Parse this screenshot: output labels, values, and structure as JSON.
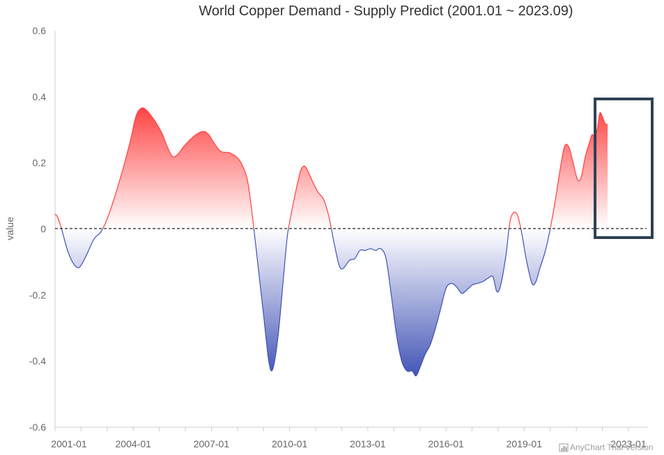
{
  "chart_data": {
    "type": "area",
    "title": "World Copper Demand - Supply Predict (2001.01 ~ 2023.09)",
    "xlabel": "",
    "ylabel": "value",
    "ylim": [
      -0.6,
      0.6
    ],
    "y_ticks": [
      "0.6",
      "0.4",
      "0.2",
      "0",
      "-0.2",
      "-0.4",
      "-0.6"
    ],
    "x_range": [
      2001.0,
      2023.75
    ],
    "x_ticks": [
      {
        "label": "2001-01",
        "x": 2001.0
      },
      {
        "label": "2004-01",
        "x": 2004.0
      },
      {
        "label": "2007-01",
        "x": 2007.0
      },
      {
        "label": "2010-01",
        "x": 2010.0
      },
      {
        "label": "2013-01",
        "x": 2013.0
      },
      {
        "label": "2016-01",
        "x": 2016.0
      },
      {
        "label": "2019-01",
        "x": 2019.0
      },
      {
        "label": "2023-01",
        "x": 2023.0
      }
    ],
    "baseline": 0,
    "positive_color": "#ff4040",
    "negative_color": "#3f51b5",
    "highlight_range": [
      2021.8,
      2023.75
    ],
    "credits": "AnyChart Trial Version",
    "series": [
      {
        "values": [
          [
            2001.0,
            0.045
          ],
          [
            2001.1,
            0.035
          ],
          [
            2001.25,
            0.0
          ],
          [
            2001.5,
            -0.07
          ],
          [
            2001.75,
            -0.11
          ],
          [
            2001.95,
            -0.115
          ],
          [
            2002.2,
            -0.08
          ],
          [
            2002.5,
            -0.03
          ],
          [
            2002.75,
            -0.01
          ],
          [
            2003.0,
            0.03
          ],
          [
            2003.3,
            0.1
          ],
          [
            2003.6,
            0.18
          ],
          [
            2003.9,
            0.27
          ],
          [
            2004.1,
            0.34
          ],
          [
            2004.3,
            0.365
          ],
          [
            2004.5,
            0.36
          ],
          [
            2004.8,
            0.33
          ],
          [
            2005.1,
            0.29
          ],
          [
            2005.3,
            0.25
          ],
          [
            2005.5,
            0.22
          ],
          [
            2005.7,
            0.225
          ],
          [
            2006.0,
            0.255
          ],
          [
            2006.4,
            0.285
          ],
          [
            2006.7,
            0.295
          ],
          [
            2006.9,
            0.285
          ],
          [
            2007.1,
            0.26
          ],
          [
            2007.35,
            0.235
          ],
          [
            2007.7,
            0.23
          ],
          [
            2008.0,
            0.215
          ],
          [
            2008.2,
            0.19
          ],
          [
            2008.4,
            0.14
          ],
          [
            2008.6,
            0.02
          ],
          [
            2008.8,
            -0.12
          ],
          [
            2009.0,
            -0.26
          ],
          [
            2009.2,
            -0.4
          ],
          [
            2009.35,
            -0.425
          ],
          [
            2009.55,
            -0.33
          ],
          [
            2009.75,
            -0.16
          ],
          [
            2009.9,
            -0.03
          ],
          [
            2010.0,
            0.02
          ],
          [
            2010.2,
            0.1
          ],
          [
            2010.4,
            0.17
          ],
          [
            2010.55,
            0.19
          ],
          [
            2010.7,
            0.175
          ],
          [
            2010.9,
            0.14
          ],
          [
            2011.1,
            0.11
          ],
          [
            2011.3,
            0.09
          ],
          [
            2011.5,
            0.04
          ],
          [
            2011.7,
            -0.04
          ],
          [
            2011.9,
            -0.11
          ],
          [
            2012.05,
            -0.12
          ],
          [
            2012.3,
            -0.095
          ],
          [
            2012.5,
            -0.09
          ],
          [
            2012.7,
            -0.065
          ],
          [
            2012.9,
            -0.065
          ],
          [
            2013.1,
            -0.06
          ],
          [
            2013.3,
            -0.065
          ],
          [
            2013.5,
            -0.06
          ],
          [
            2013.7,
            -0.09
          ],
          [
            2013.9,
            -0.2
          ],
          [
            2014.1,
            -0.32
          ],
          [
            2014.3,
            -0.4
          ],
          [
            2014.5,
            -0.43
          ],
          [
            2014.7,
            -0.43
          ],
          [
            2014.85,
            -0.445
          ],
          [
            2015.0,
            -0.42
          ],
          [
            2015.2,
            -0.38
          ],
          [
            2015.4,
            -0.35
          ],
          [
            2015.6,
            -0.3
          ],
          [
            2015.8,
            -0.24
          ],
          [
            2016.0,
            -0.18
          ],
          [
            2016.2,
            -0.165
          ],
          [
            2016.4,
            -0.175
          ],
          [
            2016.6,
            -0.195
          ],
          [
            2016.8,
            -0.185
          ],
          [
            2017.0,
            -0.17
          ],
          [
            2017.2,
            -0.165
          ],
          [
            2017.4,
            -0.16
          ],
          [
            2017.6,
            -0.15
          ],
          [
            2017.8,
            -0.145
          ],
          [
            2017.95,
            -0.19
          ],
          [
            2018.1,
            -0.17
          ],
          [
            2018.3,
            -0.08
          ],
          [
            2018.45,
            0.02
          ],
          [
            2018.6,
            0.05
          ],
          [
            2018.75,
            0.04
          ],
          [
            2018.9,
            -0.01
          ],
          [
            2019.1,
            -0.1
          ],
          [
            2019.3,
            -0.165
          ],
          [
            2019.45,
            -0.16
          ],
          [
            2019.6,
            -0.12
          ],
          [
            2019.8,
            -0.07
          ],
          [
            2020.0,
            0.0
          ],
          [
            2020.2,
            0.09
          ],
          [
            2020.4,
            0.19
          ],
          [
            2020.55,
            0.25
          ],
          [
            2020.7,
            0.25
          ],
          [
            2020.85,
            0.21
          ],
          [
            2021.0,
            0.16
          ],
          [
            2021.1,
            0.145
          ],
          [
            2021.2,
            0.16
          ],
          [
            2021.35,
            0.22
          ],
          [
            2021.5,
            0.26
          ],
          [
            2021.6,
            0.285
          ],
          [
            2021.7,
            0.28
          ],
          [
            2021.8,
            0.3
          ],
          [
            2021.9,
            0.35
          ],
          [
            2022.0,
            0.34
          ],
          [
            2022.1,
            0.32
          ],
          [
            2022.2,
            0.315
          ]
        ]
      }
    ]
  }
}
